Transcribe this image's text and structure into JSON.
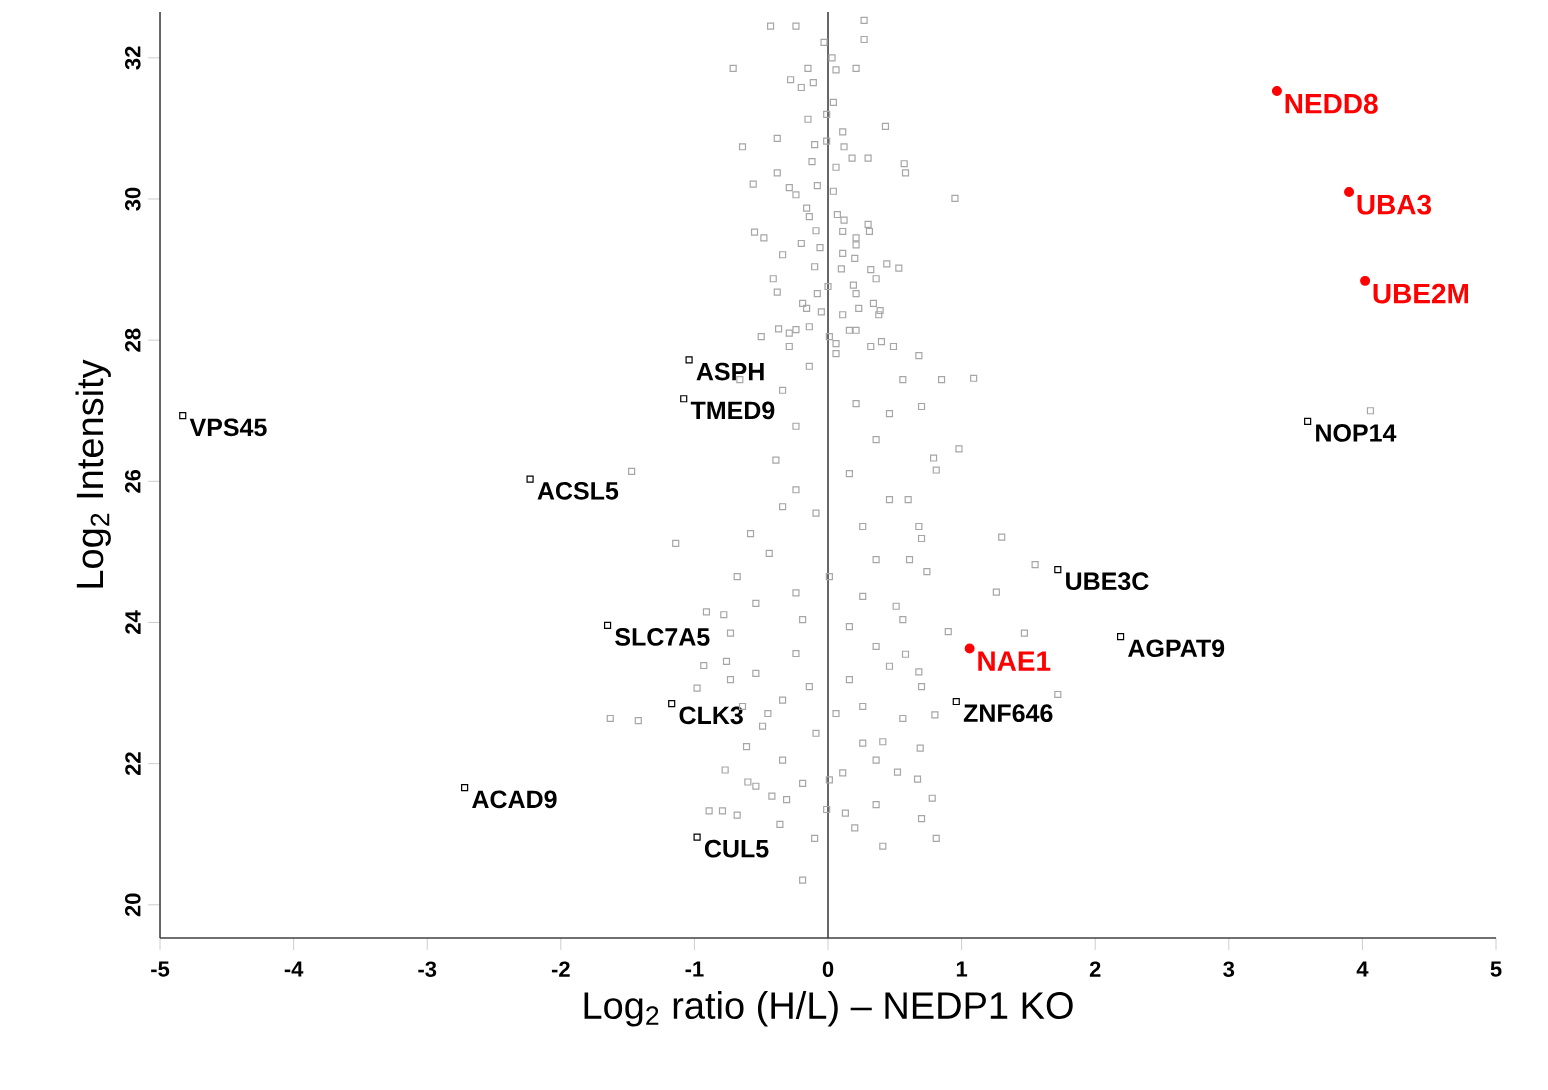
{
  "chart_data": {
    "type": "scatter",
    "xlabel": "Log$_{2}$ ratio (H/L) – NEDP1 KO",
    "ylabel": "Log$_{2}$ Intensity",
    "xlim": [
      -5,
      5
    ],
    "ylim": [
      19.53,
      32.65
    ],
    "xticks": [
      -5,
      -4,
      -3,
      -2,
      -1,
      0,
      1,
      2,
      3,
      4,
      5
    ],
    "yticks": [
      20,
      22,
      24,
      26,
      28,
      30,
      32
    ],
    "ref_lines": [
      {
        "axis": "x",
        "value": 0,
        "color": "#404040"
      }
    ],
    "series": [
      {
        "color": "#a6a6a6",
        "marker": "square",
        "x": [
          -0.43,
          -0.24,
          0.27,
          0.27,
          -0.03,
          0.03,
          -0.71,
          -0.15,
          0.06,
          0.21,
          -0.28,
          -0.2,
          -0.11,
          0.04,
          -0.15,
          -0.01,
          0.43,
          -0.64,
          -0.38,
          -0.1,
          -0.01,
          0.11,
          0.12,
          -0.12,
          0.18,
          0.3,
          0.57,
          0.58,
          -0.56,
          -0.38,
          -0.08,
          0.06,
          0.95,
          -0.29,
          -0.24,
          0.04,
          -0.16,
          -0.14,
          0.07,
          0.12,
          0.3,
          0.31,
          -0.55,
          -0.48,
          -0.09,
          0.11,
          0.21,
          -0.34,
          -0.2,
          0.21,
          -0.06,
          0.11,
          0.2,
          0.44,
          0.53,
          0.32,
          -0.1,
          0.1,
          -0.41,
          0.36,
          -0.38,
          -0.08,
          0.19,
          0.21,
          0.0,
          -0.19,
          0.23,
          0.34,
          0.39,
          0.38,
          -0.05,
          -0.16,
          0.11,
          -0.37,
          -0.5,
          -0.29,
          -0.24,
          -0.14,
          0.16,
          0.21,
          0.32,
          0.4,
          0.49,
          0.68,
          -0.29,
          0.06,
          0.01,
          0.85,
          1.09,
          0.7,
          0.98,
          0.79,
          0.81,
          -1.47,
          0.6,
          0.68,
          0.7,
          -1.14,
          0.61,
          0.74,
          1.55,
          1.26,
          -0.68,
          -0.78,
          -0.91,
          1.47,
          0.9,
          -0.34,
          0.21,
          0.46,
          -0.24,
          0.36,
          -0.39,
          0.16,
          -0.24,
          0.46,
          -0.58,
          -0.09,
          0.26,
          -0.44,
          0.36,
          0.01,
          -0.24,
          0.26,
          -0.54,
          0.51,
          -0.19,
          0.16,
          -0.66,
          0.56,
          -0.14,
          0.06,
          -0.34,
          0.56,
          -0.73,
          -0.93,
          -0.76,
          -0.98,
          -1.63,
          -1.42,
          0.46,
          0.58,
          0.68,
          0.7,
          1.72,
          0.8,
          0.56,
          0.41,
          0.69,
          0.52,
          0.67,
          0.78,
          0.36,
          0.7,
          0.81,
          0.41,
          0.2,
          -0.1,
          -0.19,
          -0.36,
          -0.77,
          -0.89,
          -0.79,
          -0.68,
          -0.6,
          -0.54,
          -0.42,
          -0.31,
          -0.01,
          0.13,
          -0.19,
          0.01,
          -0.34,
          -0.61,
          0.26,
          -0.49,
          -0.09,
          0.06,
          0.26,
          -0.34,
          -0.64,
          -0.14,
          0.16,
          -0.54,
          -0.24,
          0.36,
          -0.73,
          -0.45,
          0.11,
          0.36,
          4.06,
          1.3
        ],
        "values": [
          32.45,
          32.45,
          32.53,
          32.26,
          32.22,
          32.0,
          31.85,
          31.85,
          31.83,
          31.85,
          31.69,
          31.58,
          31.65,
          31.37,
          31.13,
          31.2,
          31.03,
          30.74,
          30.86,
          30.77,
          30.82,
          30.95,
          30.74,
          30.53,
          30.58,
          30.58,
          30.5,
          30.37,
          30.21,
          30.37,
          30.19,
          30.45,
          30.01,
          30.16,
          30.06,
          30.11,
          29.87,
          29.75,
          29.78,
          29.7,
          29.64,
          29.54,
          29.53,
          29.45,
          29.55,
          29.54,
          29.45,
          29.21,
          29.37,
          29.35,
          29.31,
          29.23,
          29.16,
          29.08,
          29.02,
          29.0,
          29.04,
          29.01,
          28.87,
          28.87,
          28.68,
          28.66,
          28.78,
          28.66,
          28.76,
          28.52,
          28.45,
          28.52,
          28.42,
          28.36,
          28.4,
          28.45,
          28.36,
          28.16,
          28.05,
          28.1,
          28.15,
          28.19,
          28.14,
          28.14,
          27.91,
          27.98,
          27.91,
          27.78,
          27.91,
          27.95,
          28.05,
          27.44,
          27.46,
          27.06,
          26.46,
          26.33,
          26.16,
          26.14,
          25.74,
          25.36,
          25.19,
          25.12,
          24.89,
          24.72,
          24.82,
          24.43,
          24.65,
          24.11,
          24.15,
          23.85,
          23.87,
          27.29,
          27.1,
          26.96,
          26.78,
          26.59,
          26.3,
          26.11,
          25.88,
          25.74,
          25.26,
          25.55,
          25.36,
          24.98,
          24.89,
          24.65,
          24.42,
          24.37,
          24.27,
          24.23,
          24.04,
          23.94,
          27.44,
          27.44,
          27.63,
          27.81,
          25.64,
          24.04,
          23.85,
          23.39,
          23.45,
          23.07,
          22.64,
          22.61,
          23.38,
          23.55,
          23.3,
          23.09,
          22.98,
          22.69,
          22.64,
          22.31,
          22.22,
          21.88,
          21.78,
          21.51,
          21.42,
          21.22,
          20.94,
          20.83,
          21.09,
          20.94,
          20.35,
          21.14,
          21.91,
          21.33,
          21.33,
          21.27,
          21.74,
          21.68,
          21.54,
          21.49,
          21.35,
          21.3,
          21.72,
          21.77,
          22.05,
          22.24,
          22.29,
          22.53,
          22.43,
          22.71,
          22.81,
          22.9,
          22.81,
          23.09,
          23.19,
          23.28,
          23.56,
          23.66,
          23.19,
          22.71,
          21.87,
          22.05,
          27.0,
          25.21
        ]
      },
      {
        "color": "#000000",
        "marker": "square",
        "x": [
          -4.83,
          -2.23,
          -2.72,
          -1.04,
          -1.08,
          -1.65,
          -1.17,
          -0.98,
          0.96,
          1.72,
          2.19,
          3.59
        ],
        "values": [
          26.93,
          26.03,
          21.66,
          27.72,
          27.17,
          23.96,
          22.85,
          20.96,
          22.88,
          24.75,
          23.8,
          26.85
        ]
      },
      {
        "color": "#ff0000",
        "marker": "circle",
        "x": [
          3.36,
          3.9,
          4.02,
          1.06
        ],
        "values": [
          31.53,
          30.1,
          28.84,
          23.63
        ]
      }
    ],
    "annotations": [
      {
        "text": "VPS45",
        "x": -4.83,
        "y": 26.93
      },
      {
        "text": "ACSL5",
        "x": -2.23,
        "y": 26.03
      },
      {
        "text": "ACAD9",
        "x": -2.72,
        "y": 21.66
      },
      {
        "text": "ASPH",
        "x": -1.04,
        "y": 27.72
      },
      {
        "text": "TMED9",
        "x": -1.08,
        "y": 27.17
      },
      {
        "text": "SLC7A5",
        "x": -1.65,
        "y": 23.96
      },
      {
        "text": "CLK3",
        "x": -1.17,
        "y": 22.85
      },
      {
        "text": "CUL5",
        "x": -0.98,
        "y": 20.96
      },
      {
        "text": "ZNF646",
        "x": 0.96,
        "y": 22.88
      },
      {
        "text": "UBE3C",
        "x": 1.72,
        "y": 24.75
      },
      {
        "text": "AGPAT9",
        "x": 2.19,
        "y": 23.8
      },
      {
        "text": "NOP14",
        "x": 3.59,
        "y": 26.85
      },
      {
        "text": "NEDD8",
        "x": 3.36,
        "y": 31.53
      },
      {
        "text": "UBA3",
        "x": 3.9,
        "y": 30.1
      },
      {
        "text": "UBE2M",
        "x": 4.02,
        "y": 28.84
      },
      {
        "text": "NAE1",
        "x": 1.06,
        "y": 23.63
      }
    ]
  }
}
